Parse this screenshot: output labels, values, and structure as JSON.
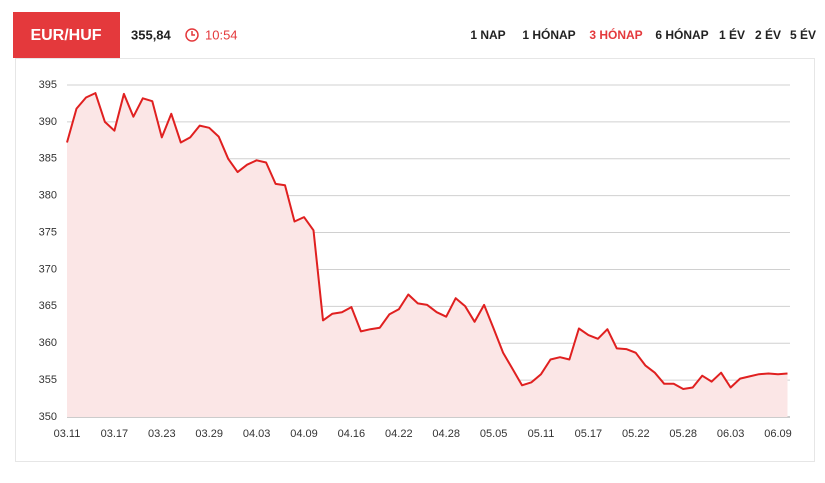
{
  "header": {
    "pair": "EUR/HUF",
    "price": "355,84",
    "time": "10:54",
    "tabs": [
      "1 NAP",
      "1 HÓNAP",
      "3 HÓNAP",
      "6 HÓNAP",
      "1 ÉV",
      "2 ÉV",
      "5 ÉV"
    ],
    "active_tab": 2
  },
  "chart_data": {
    "type": "line",
    "color": "#e02020",
    "fill": "#fbe6e6",
    "grid": true,
    "categories": [
      "03.11",
      null,
      null,
      null,
      null,
      "03.17",
      null,
      null,
      null,
      null,
      "03.23",
      null,
      null,
      null,
      null,
      "03.29",
      null,
      null,
      null,
      null,
      "04.03",
      null,
      null,
      null,
      null,
      "04.09",
      null,
      null,
      null,
      null,
      "04.16",
      null,
      null,
      null,
      null,
      "04.22",
      null,
      null,
      null,
      null,
      "04.28",
      null,
      null,
      null,
      null,
      "05.05",
      null,
      null,
      null,
      null,
      "05.11",
      null,
      null,
      null,
      null,
      "05.17",
      null,
      null,
      null,
      null,
      "05.22",
      null,
      null,
      null,
      null,
      "05.28",
      null,
      null,
      null,
      null,
      "06.03",
      null,
      null,
      null,
      null,
      "06.09",
      null
    ],
    "values": [
      387.2,
      391.8,
      393.3,
      393.9,
      390.0,
      388.8,
      393.8,
      390.7,
      393.2,
      392.8,
      387.9,
      391.1,
      387.2,
      387.9,
      389.5,
      389.2,
      388.0,
      385.0,
      383.2,
      384.2,
      384.8,
      384.5,
      381.6,
      381.4,
      376.5,
      377.1,
      375.3,
      363.1,
      364.0,
      364.2,
      364.9,
      361.6,
      361.9,
      362.1,
      363.9,
      364.6,
      366.6,
      365.4,
      365.2,
      364.2,
      363.6,
      366.1,
      365.0,
      362.9,
      365.2,
      362.0,
      358.7,
      356.5,
      354.3,
      354.7,
      355.8,
      357.8,
      358.1,
      357.8,
      362.0,
      361.1,
      360.6,
      361.9,
      359.3,
      359.2,
      358.7,
      357.0,
      356.0,
      354.5,
      354.5,
      353.8,
      354.0,
      355.6,
      354.8,
      356.0,
      354.0,
      355.2,
      355.5,
      355.8,
      355.9,
      355.8,
      355.9
    ],
    "ylim": [
      350,
      395
    ],
    "yticks": [
      350,
      355,
      360,
      365,
      370,
      375,
      380,
      385,
      390,
      395
    ]
  }
}
